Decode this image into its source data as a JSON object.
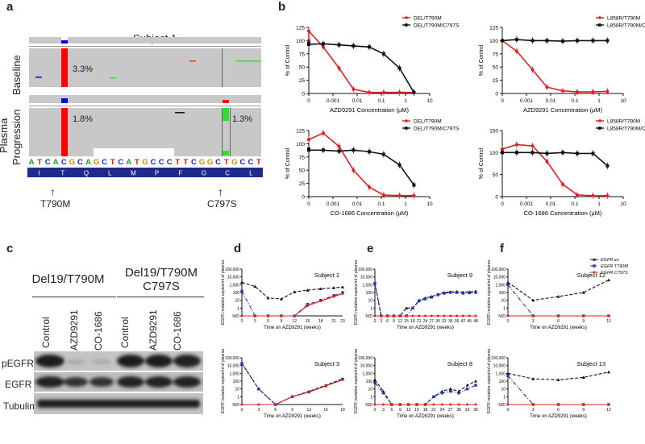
{
  "panels": {
    "a": "a",
    "b": "b",
    "c": "c",
    "d": "d",
    "e": "e",
    "f": "f"
  },
  "panel_a": {
    "subject": "Subject 1",
    "plasma": "Plasma",
    "baseline": "Baseline",
    "progression": "Progression",
    "pct_baseline": "3.3%",
    "pct_prog_left": "1.8%",
    "pct_prog_right": "1.3%",
    "bases": [
      "A",
      "T",
      "C",
      "A",
      "C",
      "G",
      "C",
      "A",
      "G",
      "C",
      "T",
      "C",
      "A",
      "T",
      "G",
      "C",
      "C",
      "C",
      "T",
      "T",
      "C",
      "G",
      "G",
      "C",
      "T",
      "G",
      "C",
      "C",
      "T"
    ],
    "amino_acids": [
      "I",
      "T",
      "Q",
      "L",
      "M",
      "P",
      "F",
      "G",
      "C",
      "L"
    ],
    "mutation_left": "T790M",
    "mutation_right": "C797S",
    "colors": {
      "red": "#ff0000",
      "blue": "#0000dd",
      "green": "#33dd33",
      "track": "#c8c8c8",
      "aa_bar": "#1f2a8c"
    }
  },
  "panel_b": {
    "ylabel": "% of Control",
    "legend_del": [
      "DEL/T790M",
      "DEL/T790M/C797S"
    ],
    "legend_l858": [
      "L858R/T790M",
      "L858R/T790M/C797S"
    ],
    "xlabel_azd": "AZD9291 Concentration (µM)",
    "xlabel_co": "CO-1686 Concentration (µM)",
    "xticks": [
      "0",
      "0.001",
      "0.01",
      "0.1",
      "1",
      "10"
    ],
    "colors": {
      "sensitive": "#dd2222",
      "resistant": "#111111"
    }
  },
  "panel_c": {
    "group_left": "Del19/T790M",
    "group_right_1": "Del19/T790M",
    "group_right_2": "C797S",
    "lanes": [
      "Control",
      "AZD9291",
      "CO-1686",
      "Control",
      "AZD9291",
      "CO-1686"
    ],
    "rows": [
      "pEGFR",
      "EGFR",
      "Tubulin"
    ]
  },
  "panels_def": {
    "ylabel": "EGFR mutation copies/ml of plasma",
    "yticks": [
      "100,000",
      "10,000",
      "1,000",
      "100",
      "10",
      "1",
      "N/D"
    ],
    "legend": [
      "EGFR ex",
      "EGFR T790M",
      "EGFR C797S"
    ],
    "xlabel": "Time on AZD9291 (weeks)",
    "subjects": [
      "Subject 1",
      "Subject 3",
      "Subject 9",
      "Subject 8",
      "Subject 12",
      "Subject 13"
    ]
  },
  "chart_data": [
    {
      "type": "line",
      "title": "",
      "legend": [
        "DEL/T790M",
        "DEL/T790M/C797S"
      ],
      "xlabel": "AZD9291 Concentration (µM)",
      "ylabel": "% of Control",
      "ylim": [
        0,
        125
      ],
      "x": [
        0,
        0.001,
        0.003,
        0.01,
        0.03,
        0.1,
        0.3,
        1,
        3
      ],
      "series": [
        {
          "name": "DEL/T790M",
          "values": [
            100,
            118,
            88,
            48,
            8,
            2,
            2,
            2,
            2
          ]
        },
        {
          "name": "DEL/T790M/C797S",
          "values": [
            95,
            93,
            94,
            92,
            90,
            88,
            75,
            48,
            2
          ]
        }
      ]
    },
    {
      "type": "line",
      "title": "",
      "legend": [
        "L858R/T790M",
        "L858R/T790M/C797S"
      ],
      "xlabel": "AZD9291 Concentration (µM)",
      "ylabel": "% of Control",
      "ylim": [
        0,
        125
      ],
      "x": [
        0,
        0.001,
        0.003,
        0.01,
        0.03,
        0.1,
        0.3,
        1,
        3
      ],
      "series": [
        {
          "name": "L858R/T790M",
          "values": [
            100,
            100,
            80,
            45,
            12,
            5,
            3,
            3,
            4
          ]
        },
        {
          "name": "L858R/T790M/C797S",
          "values": [
            100,
            100,
            102,
            100,
            100,
            99,
            100,
            100,
            100
          ]
        }
      ]
    },
    {
      "type": "line",
      "title": "",
      "legend": [
        "DEL/T790M",
        "DEL/T790M/C797S"
      ],
      "xlabel": "CO-1686 Concentration (µM)",
      "ylabel": "% of Control",
      "ylim": [
        0,
        125
      ],
      "x": [
        0,
        0.001,
        0.003,
        0.01,
        0.03,
        0.1,
        0.3,
        1,
        3
      ],
      "series": [
        {
          "name": "DEL/T790M",
          "values": [
            108,
            108,
            120,
            95,
            50,
            18,
            3,
            2,
            2
          ]
        },
        {
          "name": "DEL/T790M/C797S",
          "values": [
            90,
            88,
            88,
            86,
            88,
            85,
            80,
            60,
            22
          ]
        }
      ]
    },
    {
      "type": "line",
      "title": "",
      "legend": [
        "L858R/T790M",
        "L858R/T790M/C797S"
      ],
      "xlabel": "CO-1686 Concentration (µM)",
      "ylabel": "% of Control",
      "ylim": [
        0,
        150
      ],
      "x": [
        0,
        0.001,
        0.003,
        0.01,
        0.03,
        0.1,
        0.3,
        1,
        3
      ],
      "series": [
        {
          "name": "L858R/T790M",
          "values": [
            108,
            108,
            118,
            115,
            80,
            28,
            4,
            2,
            2
          ]
        },
        {
          "name": "L858R/T790M/C797S",
          "values": [
            100,
            100,
            100,
            100,
            98,
            100,
            98,
            98,
            70
          ]
        }
      ]
    },
    {
      "type": "line",
      "title": "Subject 1",
      "xlabel": "Time on AZD9291 (weeks)",
      "ylabel": "EGFR mutation copies/ml of plasma",
      "x": [
        0,
        3,
        6,
        9,
        12,
        15,
        18,
        21,
        23
      ],
      "xticks": [
        "0",
        "3",
        "6",
        "9",
        "12",
        "15",
        "18",
        "21",
        "23"
      ],
      "series": [
        {
          "name": "EGFR ex",
          "values": [
            2000,
            600,
            20,
            15,
            120,
            200,
            300,
            400,
            500
          ]
        },
        {
          "name": "EGFR T790M",
          "values": [
            150,
            0,
            0,
            0,
            0,
            3,
            10,
            40,
            100
          ]
        },
        {
          "name": "EGFR C797S",
          "values": [
            0,
            0,
            0,
            0,
            0,
            2,
            8,
            30,
            70
          ]
        }
      ]
    },
    {
      "type": "line",
      "title": "Subject 3",
      "xlabel": "Time on AZD9291 (weeks)",
      "ylabel": "EGFR mutation copies/ml of plasma",
      "x": [
        0,
        3,
        6,
        9,
        12,
        15,
        18
      ],
      "xticks": [
        "0",
        "3",
        "6",
        "9",
        "12",
        "15",
        "18"
      ],
      "series": [
        {
          "name": "EGFR ex",
          "values": [
            20000,
            10,
            0,
            1,
            5,
            30,
            200
          ]
        },
        {
          "name": "EGFR T790M",
          "values": [
            18000,
            10,
            0,
            1,
            4,
            25,
            180
          ]
        },
        {
          "name": "EGFR C797S",
          "values": [
            0,
            0,
            0,
            1,
            4,
            25,
            150
          ]
        }
      ]
    },
    {
      "type": "line",
      "title": "Subject 9",
      "xlabel": "Time on AZD9291 (weeks)",
      "ylabel": "EGFR mutation copies/ml of plasma",
      "x": [
        0,
        3,
        6,
        9,
        12,
        15,
        18,
        21,
        24,
        27,
        30,
        33,
        36,
        39,
        42,
        45,
        48
      ],
      "xticks": [
        "0",
        "3",
        "6",
        "9",
        "12",
        "15",
        "18",
        "21",
        "24",
        "27",
        "30",
        "33",
        "36",
        "39",
        "42",
        "45",
        "48"
      ],
      "series": [
        {
          "name": "EGFR ex",
          "values": [
            1500,
            0,
            0,
            0,
            0,
            1,
            1,
            10,
            20,
            30,
            60,
            100,
            120,
            130,
            110,
            120,
            150
          ]
        },
        {
          "name": "EGFR T790M",
          "values": [
            1500,
            0,
            0,
            0,
            0,
            0,
            1,
            8,
            15,
            25,
            50,
            80,
            100,
            100,
            80,
            90,
            100
          ]
        },
        {
          "name": "EGFR C797S",
          "values": [
            0,
            0,
            0,
            0,
            0,
            0,
            0,
            0,
            0,
            0,
            0,
            0,
            0,
            0,
            0,
            0,
            0
          ]
        }
      ]
    },
    {
      "type": "line",
      "title": "Subject 8",
      "xlabel": "Time on AZD9291 (weeks)",
      "ylabel": "EGFR mutation copies/ml of plasma",
      "x": [
        0,
        3,
        6,
        9,
        12,
        15,
        18,
        21,
        24,
        27,
        30,
        33,
        36
      ],
      "xticks": [
        "0",
        "3",
        "6",
        "9",
        "12",
        "15",
        "18",
        "21",
        "24",
        "27",
        "30",
        "33",
        "36"
      ],
      "series": [
        {
          "name": "EGFR ex",
          "values": [
            150,
            5,
            0,
            0,
            0,
            0,
            0,
            1,
            5,
            10,
            5,
            30,
            100
          ]
        },
        {
          "name": "EGFR T790M",
          "values": [
            60,
            3,
            0,
            0,
            0,
            0,
            0,
            1,
            3,
            5,
            3,
            10,
            30
          ]
        },
        {
          "name": "EGFR C797S",
          "values": [
            0,
            0,
            0,
            0,
            0,
            0,
            0,
            0,
            0,
            0,
            0,
            0,
            0
          ]
        }
      ]
    },
    {
      "type": "line",
      "title": "Subject 12",
      "xlabel": "Time on AZD9291 (weeks)",
      "ylabel": "EGFR mutation copies/ml of plasma",
      "x": [
        0,
        3,
        6,
        9,
        12
      ],
      "xticks": [
        "0",
        "3",
        "6",
        "9",
        "12"
      ],
      "series": [
        {
          "name": "EGFR ex",
          "values": [
            2000,
            10,
            30,
            100,
            4000
          ]
        },
        {
          "name": "EGFR T790M",
          "values": [
            1000,
            0,
            0,
            0,
            0
          ]
        },
        {
          "name": "EGFR C797S",
          "values": [
            0,
            0,
            0,
            0,
            0
          ]
        }
      ]
    },
    {
      "type": "line",
      "title": "Subject 13",
      "xlabel": "Time on AZD9291 (weeks)",
      "ylabel": "EGFR mutation copies/ml of plasma",
      "x": [
        0,
        3,
        6,
        9,
        12
      ],
      "xticks": [
        "0",
        "3",
        "6",
        "9",
        "12"
      ],
      "series": [
        {
          "name": "EGFR ex",
          "values": [
            1000,
            200,
            150,
            300,
            1500
          ]
        },
        {
          "name": "EGFR T790M",
          "values": [
            500,
            0,
            0,
            0,
            0
          ]
        },
        {
          "name": "EGFR C797S",
          "values": [
            0,
            0,
            0,
            0,
            0
          ]
        }
      ]
    }
  ]
}
